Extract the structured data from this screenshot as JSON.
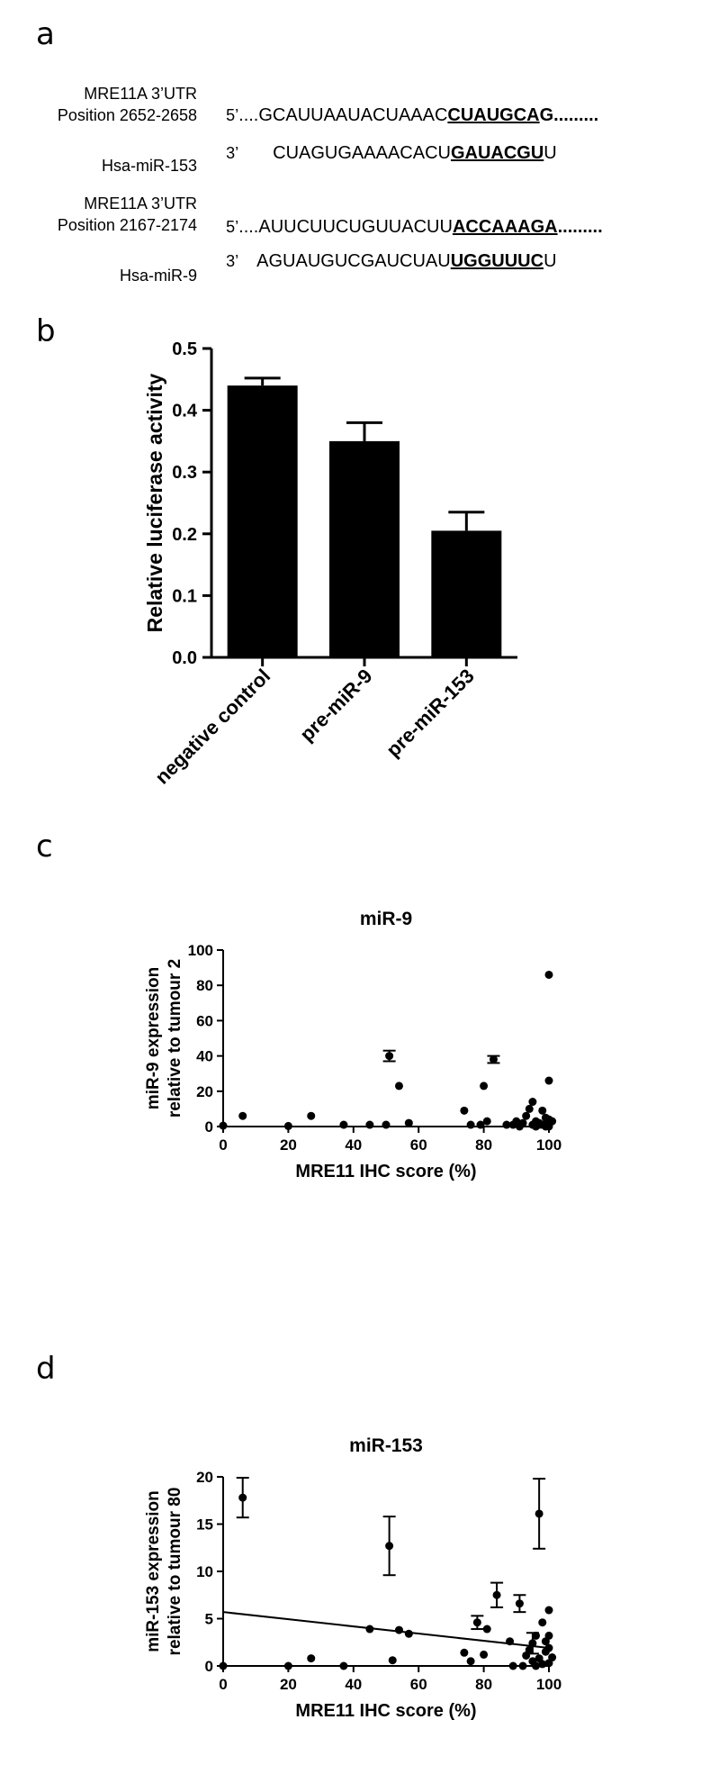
{
  "panel_a": {
    "letter": "a",
    "rows": [
      {
        "mre_label_1": "MRE11A 3’UTR",
        "mre_label_2": "Position 2652-2658",
        "mirna_label": "Hsa-miR-153",
        "line5_prefix": "5’",
        "line5_before": "....GCAUUAAUACUAAAC",
        "line5_bold": "CUAUGCA",
        "line5_after": "G.........",
        "line3_prefix": "3’",
        "line3_before": "CUAGUGAAAACACU",
        "line3_bold": "GAUACGU",
        "line3_after": "U"
      },
      {
        "mre_label_1": "MRE11A 3’UTR",
        "mre_label_2": "Position 2167-2174",
        "mirna_label": "Hsa-miR-9",
        "line5_prefix": "5’",
        "line5_before": "....AUUCUUCUGUUACUU",
        "line5_bold": "ACCAAAGA",
        "line5_after": ".........",
        "line3_prefix": "3’",
        "line3_before": "AGUAUGUCGAUCUAU",
        "line3_bold": "UGGUUUC",
        "line3_after": "U"
      }
    ]
  },
  "panel_b": {
    "letter": "b"
  },
  "panel_c": {
    "letter": "c"
  },
  "panel_d": {
    "letter": "d"
  },
  "chart_data": [
    {
      "id": "b",
      "type": "bar",
      "categories": [
        "negative control",
        "pre-miR-9",
        "pre-miR-153"
      ],
      "values": [
        0.44,
        0.35,
        0.205
      ],
      "errors": [
        0.012,
        0.03,
        0.03
      ],
      "title": "",
      "xlabel": "",
      "ylabel": "Relative luciferase activity",
      "ylim": [
        0,
        0.5
      ],
      "yticks": [
        "0.0",
        "0.1",
        "0.2",
        "0.3",
        "0.4",
        "0.5"
      ],
      "bar_color": "#000000"
    },
    {
      "id": "c",
      "type": "scatter",
      "title": "miR-9",
      "xlabel": "MRE11 IHC score (%)",
      "ylabel": [
        "miR-9 expression",
        "relative to tumour 2"
      ],
      "xlim": [
        0,
        100
      ],
      "ylim": [
        0,
        100
      ],
      "xticks": [
        "0",
        "20",
        "40",
        "60",
        "80",
        "100"
      ],
      "yticks": [
        "0",
        "20",
        "40",
        "60",
        "80",
        "100"
      ],
      "points": [
        [
          0,
          0.5
        ],
        [
          6,
          6
        ],
        [
          20,
          0.3
        ],
        [
          27,
          6
        ],
        [
          37,
          1
        ],
        [
          45,
          1
        ],
        [
          51,
          40
        ],
        [
          54,
          23
        ],
        [
          50,
          1
        ],
        [
          57,
          2
        ],
        [
          74,
          9
        ],
        [
          76,
          1
        ],
        [
          79,
          1
        ],
        [
          80,
          23
        ],
        [
          81,
          3
        ],
        [
          83,
          38
        ],
        [
          87,
          1
        ],
        [
          89,
          1
        ],
        [
          90,
          3
        ],
        [
          92,
          2
        ],
        [
          93,
          6
        ],
        [
          94,
          10
        ],
        [
          95,
          14
        ],
        [
          96,
          3
        ],
        [
          97,
          1
        ],
        [
          98,
          9
        ],
        [
          99,
          5
        ],
        [
          100,
          86
        ],
        [
          100,
          26
        ],
        [
          100,
          4
        ],
        [
          100,
          2
        ],
        [
          100,
          1
        ],
        [
          99,
          0
        ],
        [
          98,
          1
        ],
        [
          97,
          2
        ],
        [
          96,
          0
        ],
        [
          95,
          1
        ],
        [
          91,
          0
        ],
        [
          100,
          0
        ],
        [
          101,
          3
        ]
      ],
      "error_points": [
        {
          "x": 51,
          "y": 40,
          "err": 3
        },
        {
          "x": 83,
          "y": 38,
          "err": 2
        }
      ]
    },
    {
      "id": "d",
      "type": "scatter",
      "title": "miR-153",
      "xlabel": "MRE11 IHC score (%)",
      "ylabel": [
        "miR-153 expression",
        "relative to tumour 80"
      ],
      "xlim": [
        0,
        100
      ],
      "ylim": [
        0,
        20
      ],
      "xticks": [
        "0",
        "20",
        "40",
        "60",
        "80",
        "100"
      ],
      "yticks": [
        "0",
        "5",
        "10",
        "15",
        "20"
      ],
      "points": [
        [
          0,
          0
        ],
        [
          6,
          17.8
        ],
        [
          20,
          0
        ],
        [
          27,
          0.8
        ],
        [
          37,
          0
        ],
        [
          45,
          3.9
        ],
        [
          51,
          12.7
        ],
        [
          52,
          0.6
        ],
        [
          54,
          3.8
        ],
        [
          57,
          3.4
        ],
        [
          74,
          1.4
        ],
        [
          76,
          0.5
        ],
        [
          78,
          4.6
        ],
        [
          80,
          1.2
        ],
        [
          81,
          3.9
        ],
        [
          84,
          7.5
        ],
        [
          88,
          2.6
        ],
        [
          89,
          0
        ],
        [
          91,
          6.6
        ],
        [
          92,
          0
        ],
        [
          93,
          1.1
        ],
        [
          94,
          1.7
        ],
        [
          95,
          2.4
        ],
        [
          96,
          3.2
        ],
        [
          97,
          16.1
        ],
        [
          98,
          0.2
        ],
        [
          98,
          4.6
        ],
        [
          99,
          1.5
        ],
        [
          100,
          5.9
        ],
        [
          100,
          3.2
        ],
        [
          100,
          0.3
        ],
        [
          99,
          2.6
        ],
        [
          97,
          0.8
        ],
        [
          96,
          0
        ],
        [
          95,
          0.5
        ],
        [
          100,
          1.9
        ],
        [
          101,
          0.9
        ]
      ],
      "error_points": [
        {
          "x": 6,
          "y": 17.8,
          "err": 2.1
        },
        {
          "x": 51,
          "y": 12.7,
          "err": 3.1
        },
        {
          "x": 78,
          "y": 4.6,
          "err": 0.7
        },
        {
          "x": 84,
          "y": 7.5,
          "err": 1.3
        },
        {
          "x": 91,
          "y": 6.6,
          "err": 0.9
        },
        {
          "x": 95,
          "y": 2.4,
          "err": 1.1
        },
        {
          "x": 97,
          "y": 16.1,
          "err": 3.7
        }
      ],
      "regression": {
        "x": [
          0,
          100
        ],
        "y": [
          5.7,
          1.9
        ]
      }
    }
  ]
}
